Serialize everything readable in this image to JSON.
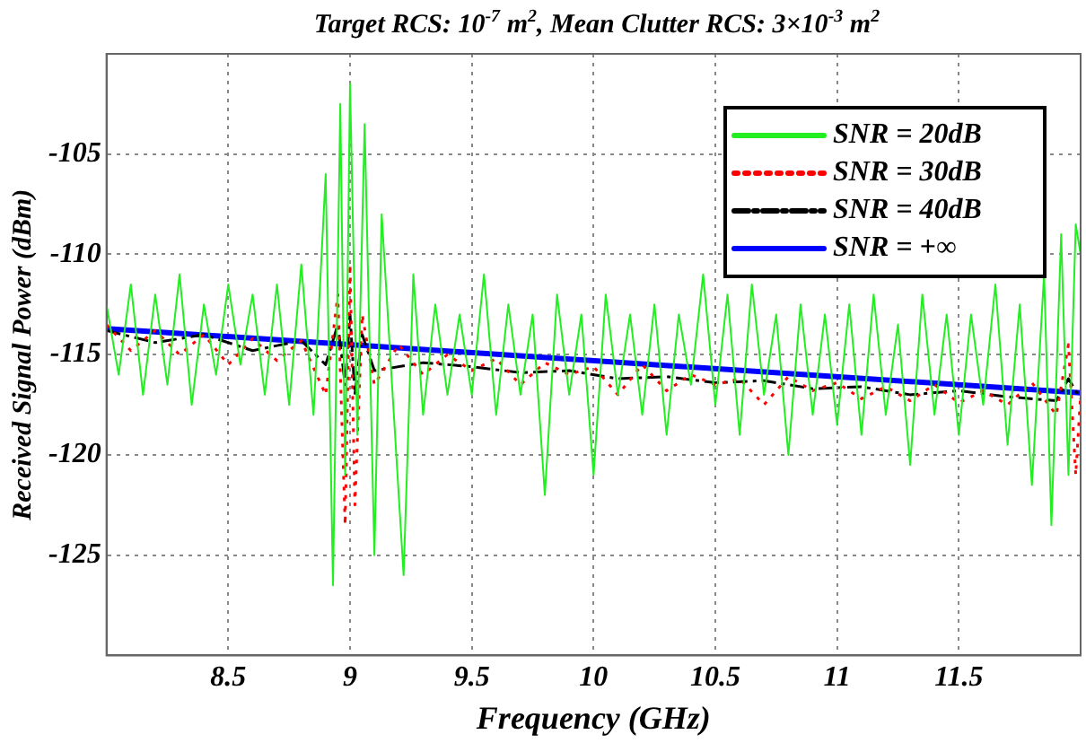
{
  "chart_data": {
    "type": "line",
    "title": "Target  RCS: 10$^{-7}$ m$^{2}$, Mean Clutter  RCS: 3×10$^{-3}$ m$^{2}$",
    "xlabel": "Frequency (GHz)",
    "ylabel": "Received Signal Power (dBm)",
    "xlim": [
      8,
      12
    ],
    "xticks": [
      8.5,
      9,
      9.5,
      10,
      10.5,
      11,
      11.5
    ],
    "ylim": [
      -130,
      -100
    ],
    "yticks": [
      -125,
      -120,
      -115,
      -110,
      -105
    ],
    "grid": true,
    "legend": "top right",
    "marker": "none",
    "series": [
      {
        "name": "SNR = 20dB",
        "color": "#22ee22",
        "line_style": "solid",
        "x": [
          8,
          8.05,
          8.1,
          8.15,
          8.2,
          8.25,
          8.3,
          8.35,
          8.4,
          8.45,
          8.5,
          8.55,
          8.6,
          8.65,
          8.7,
          8.75,
          8.8,
          8.85,
          8.9,
          8.93,
          8.96,
          8.98,
          9,
          9.03,
          9.06,
          9.1,
          9.13,
          9.18,
          9.22,
          9.26,
          9.3,
          9.35,
          9.4,
          9.45,
          9.5,
          9.55,
          9.6,
          9.65,
          9.7,
          9.75,
          9.8,
          9.85,
          9.9,
          9.95,
          10,
          10.05,
          10.1,
          10.15,
          10.2,
          10.25,
          10.3,
          10.35,
          10.4,
          10.45,
          10.5,
          10.55,
          10.6,
          10.65,
          10.7,
          10.75,
          10.8,
          10.85,
          10.9,
          10.95,
          11,
          11.05,
          11.1,
          11.15,
          11.2,
          11.25,
          11.3,
          11.35,
          11.4,
          11.45,
          11.5,
          11.55,
          11.6,
          11.65,
          11.7,
          11.75,
          11.8,
          11.85,
          11.88,
          11.92,
          11.95,
          11.98,
          12
        ],
        "values": [
          -112.5,
          -116,
          -111.5,
          -117,
          -112,
          -116.5,
          -111,
          -117.5,
          -112.5,
          -116,
          -111.5,
          -115.5,
          -112,
          -117,
          -111.5,
          -117.5,
          -110.5,
          -118,
          -106,
          -126.5,
          -102.5,
          -121,
          -101.5,
          -119,
          -103.5,
          -125,
          -108,
          -118,
          -126,
          -111,
          -118,
          -112.5,
          -117,
          -113,
          -117,
          -111,
          -118,
          -112.5,
          -117,
          -113,
          -122,
          -112,
          -117,
          -113,
          -121,
          -112,
          -117,
          -113,
          -118,
          -112.5,
          -119,
          -113,
          -116.5,
          -111,
          -117.5,
          -112,
          -119,
          -111.5,
          -117,
          -113,
          -120,
          -112.5,
          -118,
          -113,
          -118.5,
          -112.5,
          -119,
          -112,
          -118,
          -113.5,
          -120.5,
          -112,
          -118,
          -113,
          -119,
          -113,
          -117.5,
          -111.5,
          -119.5,
          -112.5,
          -121.5,
          -111,
          -123.5,
          -109,
          -121,
          -108.5,
          -110
        ]
      },
      {
        "name": "SNR = 30dB",
        "color": "#ff0000",
        "line_style": "dotted",
        "x": [
          8,
          8.1,
          8.2,
          8.3,
          8.4,
          8.5,
          8.6,
          8.7,
          8.8,
          8.9,
          8.95,
          8.98,
          9,
          9.02,
          9.05,
          9.1,
          9.2,
          9.3,
          9.4,
          9.5,
          9.6,
          9.7,
          9.8,
          9.9,
          10,
          10.1,
          10.2,
          10.3,
          10.4,
          10.5,
          10.6,
          10.7,
          10.8,
          10.9,
          11,
          11.1,
          11.2,
          11.3,
          11.4,
          11.5,
          11.6,
          11.7,
          11.8,
          11.9,
          11.95,
          11.98,
          12
        ],
        "values": [
          -113.5,
          -114.8,
          -113.8,
          -115,
          -114,
          -115.5,
          -114.2,
          -115.3,
          -114.3,
          -117,
          -112,
          -123.5,
          -110.5,
          -122.5,
          -113,
          -116.5,
          -114.5,
          -116,
          -115,
          -115.8,
          -115.2,
          -116.5,
          -115.4,
          -116,
          -115.6,
          -117,
          -115.5,
          -116.8,
          -116,
          -116.5,
          -116.2,
          -117.5,
          -116.1,
          -116.8,
          -116.4,
          -117.2,
          -116.6,
          -117.3,
          -116.5,
          -117.4,
          -116.8,
          -117.5,
          -116.4,
          -118,
          -114.5,
          -121,
          -117
        ]
      },
      {
        "name": "SNR = 40dB",
        "color": "#000000",
        "line_style": "dashed",
        "x": [
          8,
          8.2,
          8.4,
          8.6,
          8.8,
          8.9,
          8.95,
          8.98,
          9,
          9.02,
          9.05,
          9.1,
          9.3,
          9.5,
          9.7,
          9.9,
          10.1,
          10.3,
          10.5,
          10.7,
          10.9,
          11.1,
          11.3,
          11.5,
          11.7,
          11.9,
          11.95,
          12
        ],
        "values": [
          -113.8,
          -114.4,
          -114,
          -114.8,
          -114.3,
          -115.5,
          -113.5,
          -116.5,
          -113,
          -117,
          -114,
          -115.8,
          -115.4,
          -115.6,
          -115.9,
          -115.8,
          -116.2,
          -116.1,
          -116.4,
          -116.3,
          -116.7,
          -116.6,
          -117,
          -116.8,
          -117.1,
          -117.3,
          -116.2,
          -117.2
        ]
      },
      {
        "name": "SNR = +∞",
        "color": "#0000ff",
        "line_style": "solid",
        "x": [
          8,
          12
        ],
        "values": [
          -113.7,
          -116.9
        ]
      }
    ]
  }
}
